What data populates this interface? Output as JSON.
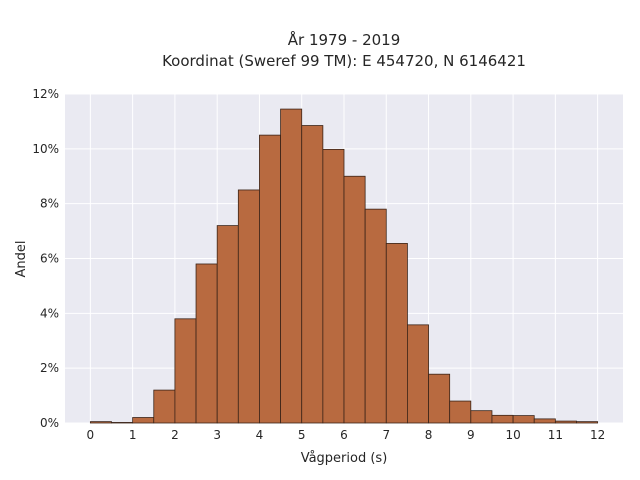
{
  "chart_data": {
    "type": "bar",
    "title": "År 1979 - 2019",
    "subtitle": "Koordinat (Sweref 99 TM): E 454720, N 6146421",
    "xlabel": "Vågperiod (s)",
    "ylabel": "Andel",
    "bin_width": 0.5,
    "bin_starts": [
      0,
      0.5,
      1,
      1.5,
      2,
      2.5,
      3,
      3.5,
      4,
      4.5,
      5,
      5.5,
      6,
      6.5,
      7,
      7.5,
      8,
      8.5,
      9,
      9.5,
      10,
      10.5,
      11,
      11.5
    ],
    "values": [
      0.05,
      0.02,
      0.2,
      1.2,
      3.8,
      5.8,
      7.2,
      8.5,
      10.5,
      11.45,
      10.85,
      9.98,
      9.0,
      7.8,
      6.55,
      3.58,
      1.78,
      0.8,
      0.45,
      0.28,
      0.27,
      0.15,
      0.07,
      0.05
    ],
    "xticks": [
      0,
      1,
      2,
      3,
      4,
      5,
      6,
      7,
      8,
      9,
      10,
      11,
      12
    ],
    "yticks": [
      0,
      2,
      4,
      6,
      8,
      10,
      12
    ],
    "ytick_suffix": "%",
    "xlim": [
      -0.6,
      12.6
    ],
    "ylim": [
      0,
      12
    ],
    "grid": true,
    "bar_color": "#b86a40",
    "edge_color": "#3b2418",
    "background_color": "#eaeaf2"
  }
}
